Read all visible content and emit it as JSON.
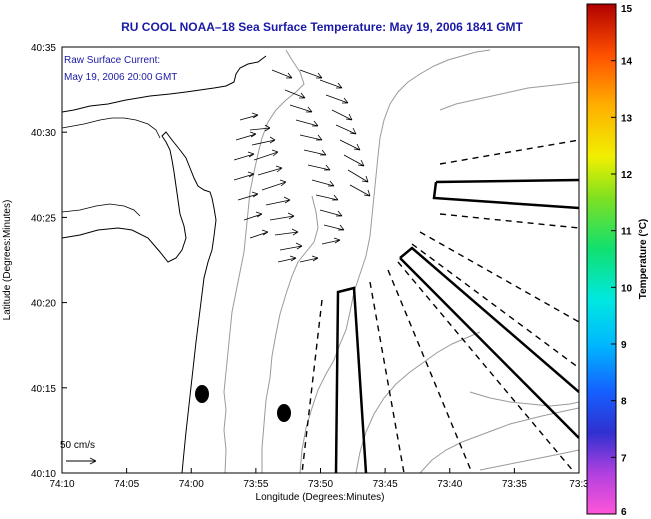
{
  "title": "RU COOL  NOAA–18  Sea Surface Temperature:  May 19, 2006 1841 GMT",
  "annotation": {
    "line1": "Raw Surface Current:",
    "line2": "May 19, 2006 20:00 GMT"
  },
  "scale_label": "50 cm/s",
  "axes": {
    "xlabel": "Longitude (Degrees:Minutes)",
    "ylabel": "Latitude (Degrees:Minutes)",
    "xticks": [
      "74:10",
      "74:05",
      "74:00",
      "73:55",
      "73:50",
      "73:45",
      "73:40",
      "73:35",
      "73:3"
    ],
    "yticks": [
      "40:35",
      "40:30",
      "40:25",
      "40:20",
      "40:15",
      "40:10"
    ]
  },
  "colorbar": {
    "label": "Temperature (°C)",
    "ticks": [
      "15",
      "14",
      "13",
      "12",
      "11",
      "10",
      "9",
      "8",
      "7",
      "6"
    ],
    "min": 6,
    "max": 15
  },
  "colors": {
    "title": "#1a1aa6",
    "contour": "#9a9a9a",
    "frame": "#000000"
  }
}
